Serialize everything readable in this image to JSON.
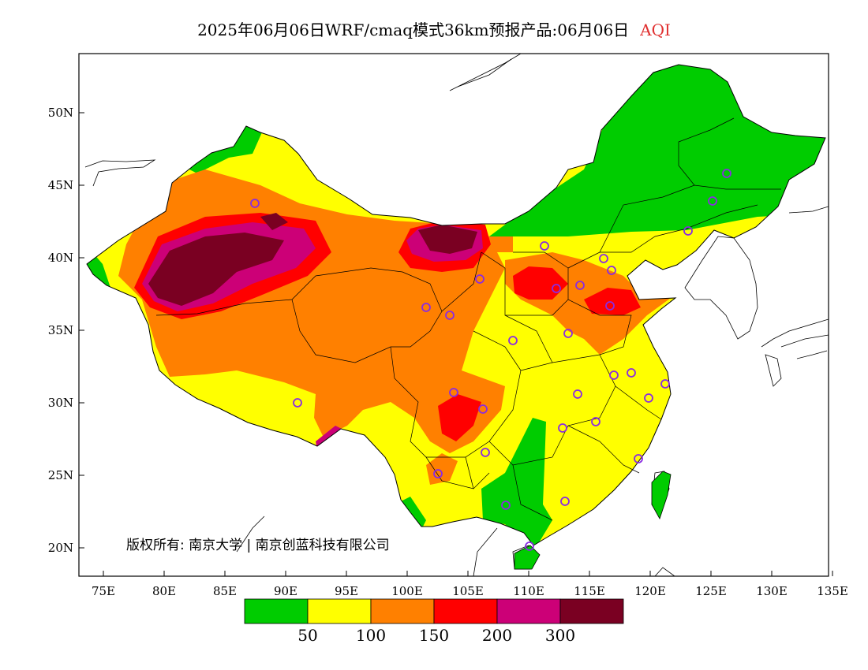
{
  "header": {
    "title": "2025年06月06日WRF/cmaq模式36km预报产品:06月06日",
    "highlight": "AQI",
    "highlight_color": "#e03030"
  },
  "axes": {
    "x_ticks": [
      "75E",
      "80E",
      "85E",
      "90E",
      "95E",
      "100E",
      "105E",
      "110E",
      "115E",
      "120E",
      "125E",
      "130E",
      "135E"
    ],
    "y_ticks": [
      "50N",
      "45N",
      "40N",
      "35N",
      "30N",
      "25N",
      "20N"
    ]
  },
  "copyright": "版权所有: 南京大学 | 南京创蓝科技有限公司",
  "colorbar": {
    "colors": [
      "#00cc00",
      "#ffff00",
      "#ff8000",
      "#ff0000",
      "#cc0077",
      "#7a0022"
    ],
    "labels": [
      "50",
      "100",
      "150",
      "200",
      "300"
    ]
  },
  "overlay": {
    "station_marker": "circle-icon",
    "station_color": "#8a2be2"
  }
}
